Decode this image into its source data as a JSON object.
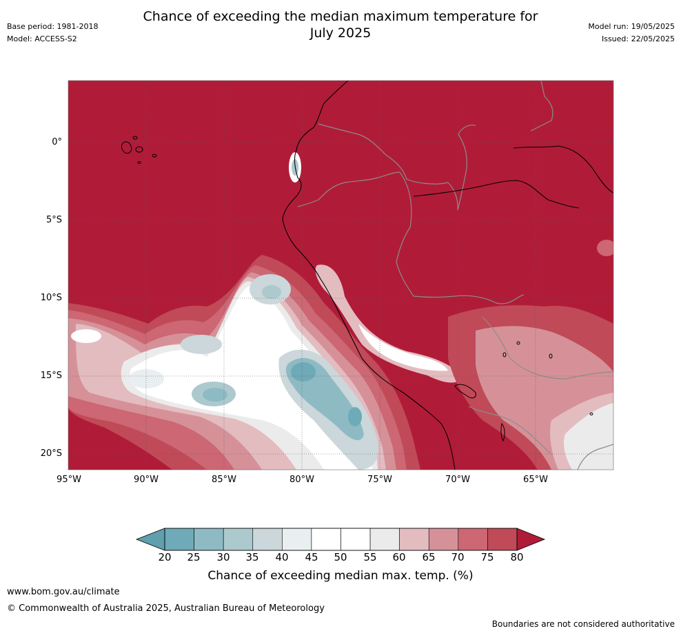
{
  "header": {
    "title_line1": "Chance of exceeding the median maximum temperature for",
    "title_line2": "July 2025",
    "base_period": "Base period: 1981-2018",
    "model": "Model: ACCESS-S2",
    "model_run": "Model run: 19/05/2025",
    "issued": "Issued: 22/05/2025"
  },
  "map": {
    "lat_labels": [
      "0°",
      "5°S",
      "10°S",
      "15°S",
      "20°S"
    ],
    "lon_labels": [
      "95°W",
      "90°W",
      "85°W",
      "80°W",
      "75°W",
      "70°W",
      "65°W"
    ],
    "colors": {
      "c80": "#b01c38",
      "c75": "#c04a58",
      "c70": "#cc6773",
      "c65": "#d69198",
      "c60": "#e3bcc0",
      "c55": "#ecebeb",
      "c50": "#ffffff",
      "c40": "#e9eff1",
      "c35": "#cbd7da",
      "c30": "#acc9cd",
      "c25": "#8ebac4",
      "c20": "#6eaab7"
    }
  },
  "colorbar": {
    "ticks": [
      "20",
      "25",
      "30",
      "35",
      "40",
      "45",
      "50",
      "55",
      "60",
      "65",
      "70",
      "75",
      "80"
    ],
    "bins": [
      "#6eaab7",
      "#8ebac4",
      "#acc9cd",
      "#cbd7da",
      "#e9eff1",
      "#ffffff",
      "#ffffff",
      "#ecebeb",
      "#e3bcc0",
      "#d69198",
      "#cc6773",
      "#c04a58"
    ],
    "low_extend": "#5f9fae",
    "high_extend": "#b01c38",
    "label": "Chance of exceeding median max. temp. (%)"
  },
  "footer": {
    "url": "www.bom.gov.au/climate",
    "copyright": "© Commonwealth of Australia 2025, Australian Bureau of Meteorology",
    "disclaimer": "Boundaries are not considered authoritative"
  }
}
